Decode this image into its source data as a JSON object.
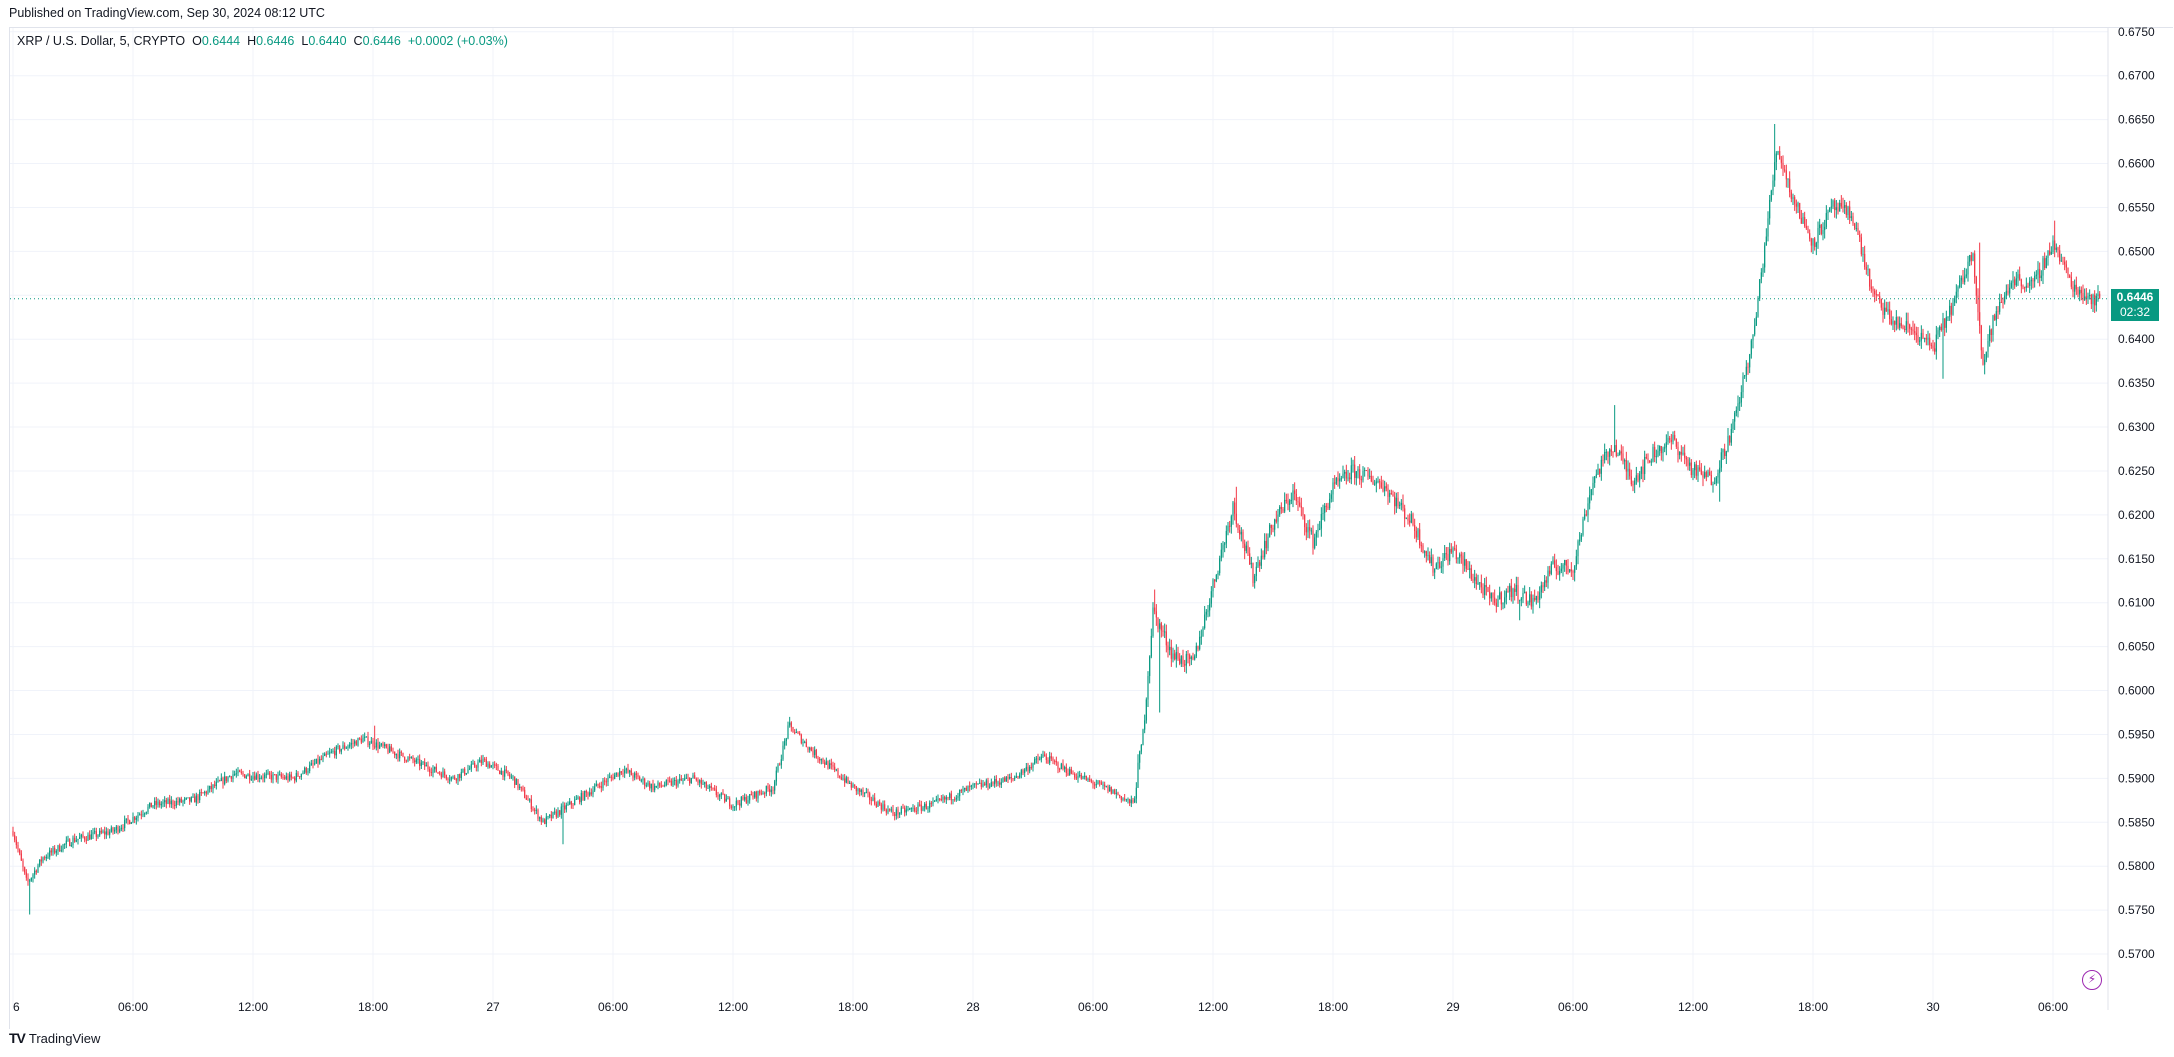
{
  "header": {
    "published": "Published on TradingView.com, Sep 30, 2024 08:12 UTC"
  },
  "legend": {
    "symbol": "XRP / U.S. Dollar, 5, CRYPTO",
    "open_label": "O",
    "open": "0.6444",
    "high_label": "H",
    "high": "0.6446",
    "low_label": "L",
    "low": "0.6440",
    "close_label": "C",
    "close": "0.6446",
    "change": "+0.0002 (+0.03%)"
  },
  "price_tag": {
    "price": "0.6446",
    "countdown": "02:32"
  },
  "brand": {
    "icon": "tradingview-logo-icon",
    "name": "TradingView"
  },
  "colors": {
    "up": "#089981",
    "down": "#f23645",
    "grid": "#f0f3fa",
    "accent": "#9c27b0"
  },
  "chart_data": {
    "type": "candlestick",
    "title": "XRP / U.S. Dollar, 5, CRYPTO",
    "ylim": [
      0.5675,
      0.676
    ],
    "y_ticks": [
      "0.6750",
      "0.6700",
      "0.6650",
      "0.6600",
      "0.6550",
      "0.6500",
      "0.6450",
      "0.6400",
      "0.6350",
      "0.6300",
      "0.6250",
      "0.6200",
      "0.6150",
      "0.6100",
      "0.6050",
      "0.6000",
      "0.5950",
      "0.5900",
      "0.5850",
      "0.5800",
      "0.5750",
      "0.5700"
    ],
    "x_ticks": [
      "6",
      "06:00",
      "12:00",
      "18:00",
      "27",
      "06:00",
      "12:00",
      "18:00",
      "28",
      "06:00",
      "12:00",
      "18:00",
      "29",
      "06:00",
      "12:00",
      "18:00",
      "30",
      "06:00"
    ],
    "x_tick_hours": [
      0,
      6,
      12,
      18,
      24,
      30,
      36,
      42,
      48,
      54,
      60,
      66,
      72,
      78,
      84,
      90,
      96,
      102
    ],
    "hours_span": [
      0,
      104.4
    ],
    "last_price": 0.6446,
    "trend_keypoints": [
      [
        0,
        0.584
      ],
      [
        0.7,
        0.578
      ],
      [
        1.5,
        0.581
      ],
      [
        3,
        0.583
      ],
      [
        5,
        0.584
      ],
      [
        7,
        0.587
      ],
      [
        9,
        0.5875
      ],
      [
        11,
        0.5905
      ],
      [
        14,
        0.59
      ],
      [
        16,
        0.593
      ],
      [
        17.5,
        0.5945
      ],
      [
        18.5,
        0.5935
      ],
      [
        20,
        0.592
      ],
      [
        22,
        0.59
      ],
      [
        23.5,
        0.592
      ],
      [
        25,
        0.59
      ],
      [
        26.5,
        0.585
      ],
      [
        28.5,
        0.588
      ],
      [
        30.5,
        0.591
      ],
      [
        32,
        0.589
      ],
      [
        34,
        0.59
      ],
      [
        36,
        0.587
      ],
      [
        38,
        0.589
      ],
      [
        38.8,
        0.596
      ],
      [
        40,
        0.593
      ],
      [
        42,
        0.589
      ],
      [
        44,
        0.586
      ],
      [
        46,
        0.587
      ],
      [
        48,
        0.589
      ],
      [
        50,
        0.59
      ],
      [
        51.5,
        0.5925
      ],
      [
        53,
        0.5905
      ],
      [
        55,
        0.5885
      ],
      [
        56,
        0.587
      ],
      [
        56.5,
        0.595
      ],
      [
        57,
        0.609
      ],
      [
        58,
        0.604
      ],
      [
        59,
        0.603
      ],
      [
        60,
        0.612
      ],
      [
        61,
        0.621
      ],
      [
        62,
        0.613
      ],
      [
        63,
        0.619
      ],
      [
        64,
        0.6225
      ],
      [
        65,
        0.617
      ],
      [
        66,
        0.623
      ],
      [
        67,
        0.625
      ],
      [
        68.5,
        0.6235
      ],
      [
        70,
        0.619
      ],
      [
        71,
        0.614
      ],
      [
        72,
        0.616
      ],
      [
        73,
        0.613
      ],
      [
        74,
        0.61
      ],
      [
        75,
        0.6115
      ],
      [
        76,
        0.61
      ],
      [
        77,
        0.614
      ],
      [
        78,
        0.614
      ],
      [
        79,
        0.624
      ],
      [
        80,
        0.628
      ],
      [
        81,
        0.624
      ],
      [
        82,
        0.627
      ],
      [
        83,
        0.6285
      ],
      [
        84,
        0.625
      ],
      [
        85,
        0.624
      ],
      [
        86,
        0.63
      ],
      [
        87,
        0.64
      ],
      [
        87.5,
        0.649
      ],
      [
        88.2,
        0.662
      ],
      [
        89,
        0.656
      ],
      [
        90,
        0.651
      ],
      [
        91,
        0.655
      ],
      [
        92,
        0.654
      ],
      [
        93,
        0.645
      ],
      [
        94,
        0.642
      ],
      [
        95,
        0.641
      ],
      [
        96,
        0.639
      ],
      [
        97,
        0.644
      ],
      [
        98,
        0.65
      ],
      [
        98.5,
        0.637
      ],
      [
        99,
        0.642
      ],
      [
        100,
        0.647
      ],
      [
        101,
        0.646
      ],
      [
        102,
        0.651
      ],
      [
        103,
        0.646
      ],
      [
        104,
        0.6446
      ]
    ],
    "spikes": [
      {
        "hour": 0.8,
        "low": 0.5745
      },
      {
        "hour": 18.1,
        "high": 0.596
      },
      {
        "hour": 27.5,
        "low": 0.5825
      },
      {
        "hour": 38.8,
        "high": 0.597
      },
      {
        "hour": 57.1,
        "high": 0.6115
      },
      {
        "hour": 57.3,
        "low": 0.5975
      },
      {
        "hour": 61.2,
        "high": 0.6232
      },
      {
        "hour": 75.3,
        "low": 0.608
      },
      {
        "hour": 80.1,
        "high": 0.6325
      },
      {
        "hour": 85.3,
        "low": 0.6215
      },
      {
        "hour": 88.1,
        "high": 0.6645
      },
      {
        "hour": 96.5,
        "low": 0.6355
      },
      {
        "hour": 98.3,
        "high": 0.651
      },
      {
        "hour": 98.6,
        "low": 0.636
      },
      {
        "hour": 102.1,
        "high": 0.6535
      }
    ]
  }
}
